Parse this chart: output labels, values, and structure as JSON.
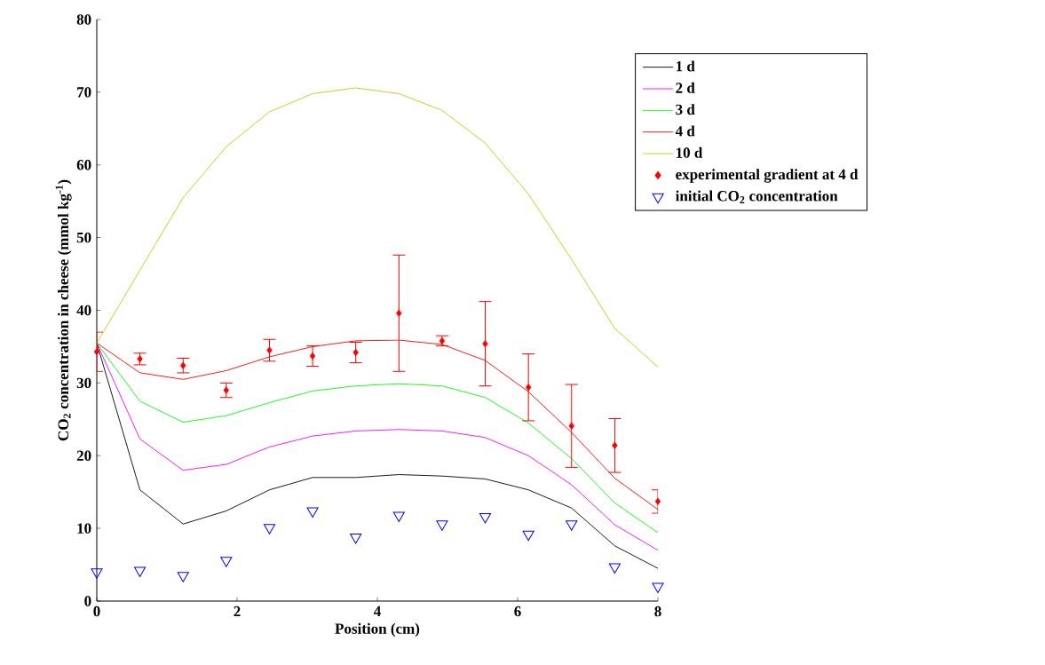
{
  "chart_data": {
    "type": "line",
    "xlabel": "Position (cm)",
    "ylabel": "CO$_{2}$ concentration in cheese (mmol kg$^{-1}$)",
    "x": [
      0,
      0.615,
      1.231,
      1.846,
      2.462,
      3.077,
      3.692,
      4.308,
      4.923,
      5.538,
      6.154,
      6.769,
      7.385,
      8
    ],
    "xlim": [
      0,
      8
    ],
    "ylim": [
      0,
      80
    ],
    "xticks": [
      0,
      2,
      4,
      6,
      8
    ],
    "yticks": [
      0,
      10,
      20,
      30,
      40,
      50,
      60,
      70,
      80
    ],
    "grid": false,
    "legend": "top right",
    "series": [
      {
        "name": "1 d",
        "color": "#000000",
        "marker": "none",
        "values": [
          35.5,
          15.3,
          10.6,
          12.4,
          15.3,
          17.0,
          17.0,
          17.4,
          17.2,
          16.8,
          15.3,
          12.8,
          7.6,
          4.5
        ]
      },
      {
        "name": "2 d",
        "color": "#ff00ff",
        "marker": "none",
        "values": [
          35.5,
          22.3,
          18.0,
          18.8,
          21.2,
          22.7,
          23.4,
          23.6,
          23.4,
          22.5,
          20.0,
          16.0,
          10.5,
          7.0
        ]
      },
      {
        "name": "3 d",
        "color": "#00ff00",
        "marker": "none",
        "values": [
          35.5,
          27.5,
          24.6,
          25.5,
          27.3,
          28.9,
          29.6,
          29.9,
          29.6,
          28.0,
          24.5,
          19.6,
          13.5,
          9.4
        ]
      },
      {
        "name": "4 d",
        "color": "#ff0000",
        "marker": "none",
        "values": [
          35.5,
          31.4,
          30.5,
          31.7,
          33.6,
          35.0,
          35.8,
          35.9,
          35.3,
          33.1,
          28.8,
          23.2,
          16.9,
          12.6
        ]
      },
      {
        "name": "10 d",
        "color": "#c8c800",
        "marker": "none",
        "values": [
          35.5,
          45.5,
          55.5,
          62.5,
          67.3,
          69.8,
          70.6,
          69.8,
          67.5,
          63.0,
          56.0,
          47.0,
          37.5,
          32.2
        ]
      },
      {
        "name": "experimental gradient at 4 d",
        "color": "#ff0000",
        "type": "scatter",
        "marker": "diamond",
        "values": [
          34.3,
          33.3,
          32.4,
          29.0,
          34.5,
          33.7,
          34.2,
          39.6,
          35.8,
          35.4,
          29.4,
          24.1,
          21.4,
          13.7
        ],
        "errors": [
          2.7,
          0.8,
          1.0,
          1.0,
          1.5,
          1.4,
          1.4,
          8.0,
          0.7,
          5.8,
          4.6,
          5.7,
          3.7,
          1.6
        ]
      },
      {
        "name": "initial CO$_{2}$ concentration",
        "color": "#0000ff",
        "type": "scatter",
        "marker": "triangle",
        "values": [
          4.0,
          4.2,
          3.5,
          5.6,
          10.1,
          12.4,
          8.8,
          11.8,
          10.6,
          11.6,
          9.2,
          10.6,
          4.7,
          2.0
        ]
      }
    ]
  }
}
